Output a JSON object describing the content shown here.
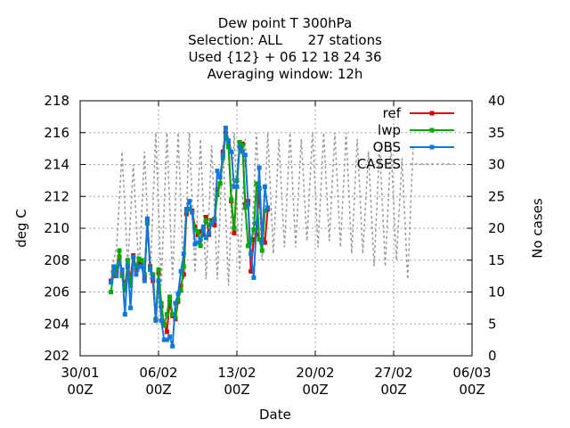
{
  "chart_data": {
    "type": "line",
    "title": "Dew point T 300hPa",
    "subtitle_lines": [
      "Selection: ALL      27 stations",
      "Used {12} + 06 12 18 24 36",
      "Averaging window: 12h"
    ],
    "xlabel": "Date",
    "ylabel": "deg C",
    "y2label": "No cases",
    "ylim": [
      202,
      218
    ],
    "y2lim": [
      0,
      40
    ],
    "x_range_days": [
      0,
      35
    ],
    "x_ticks": [
      {
        "day": 0,
        "label": [
          "30/01",
          "00Z"
        ]
      },
      {
        "day": 7,
        "label": [
          "06/02",
          "00Z"
        ]
      },
      {
        "day": 14,
        "label": [
          "13/02",
          "00Z"
        ]
      },
      {
        "day": 21,
        "label": [
          "20/02",
          "00Z"
        ]
      },
      {
        "day": 28,
        "label": [
          "27/02",
          "00Z"
        ]
      },
      {
        "day": 35,
        "label": [
          "06/03",
          "00Z"
        ]
      }
    ],
    "y_ticks": [
      202,
      204,
      206,
      208,
      210,
      212,
      214,
      216,
      218
    ],
    "y2_ticks": [
      0,
      5,
      10,
      15,
      20,
      25,
      30,
      35,
      40
    ],
    "grid": true,
    "legend_position": "top-right",
    "x_day_step": 0.25,
    "x_start_day": 2.75,
    "series": [
      {
        "name": "ref",
        "color": "#dd0000",
        "axis": "left",
        "values": [
          206.7,
          207.0,
          207.3,
          208.2,
          207.1,
          206.4,
          207.6,
          206.9,
          208.3,
          207.4,
          207.8,
          207.8,
          206.9,
          210.5,
          207.6,
          206.7,
          204.3,
          207.2,
          205.1,
          204.0,
          203.5,
          205.4,
          204.5,
          204.3,
          205.4,
          206.4,
          207.1,
          210.9,
          211.2,
          211.1,
          210.1,
          209.6,
          209.8,
          209.6,
          210.7,
          209.6,
          210.5,
          210.2,
          212.4,
          212.8,
          214.8,
          216.0,
          215.2,
          211.7,
          209.7,
          213.0,
          215.1,
          215.3,
          211.5,
          211.7,
          207.3,
          209.3,
          209.6,
          212.5,
          209.3,
          209.1,
          211.2
        ]
      },
      {
        "name": "lwp",
        "color": "#00aa00",
        "axis": "left",
        "values": [
          206.0,
          207.3,
          207.5,
          208.6,
          207.0,
          206.1,
          208.0,
          206.4,
          208.2,
          207.6,
          208.1,
          208.0,
          207.1,
          210.3,
          207.5,
          207.1,
          204.3,
          207.4,
          205.3,
          203.9,
          204.6,
          205.7,
          204.6,
          204.4,
          205.5,
          206.1,
          207.6,
          211.1,
          211.2,
          211.0,
          209.9,
          209.8,
          208.9,
          209.9,
          210.5,
          210.2,
          210.4,
          210.6,
          212.1,
          212.8,
          214.4,
          215.8,
          215.1,
          211.8,
          210.0,
          213.0,
          215.4,
          215.2,
          211.3,
          208.9,
          209.2,
          209.9,
          212.8,
          209.3,
          208.6,
          211.1
        ]
      },
      {
        "name": "OBS",
        "color": "#1177dd",
        "axis": "left",
        "values": [
          206.6,
          207.6,
          207.0,
          207.8,
          207.4,
          204.6,
          207.7,
          205.0,
          208.2,
          207.1,
          207.6,
          207.6,
          206.7,
          210.6,
          207.4,
          206.9,
          204.2,
          206.7,
          204.2,
          203.0,
          203.0,
          203.2,
          202.6,
          205.3,
          205.9,
          207.3,
          208.4,
          211.2,
          211.7,
          211.0,
          209.0,
          209.1,
          209.3,
          210.1,
          209.4,
          209.7,
          210.3,
          210.5,
          213.6,
          213.2,
          214.6,
          216.3,
          215.5,
          214.8,
          212.6,
          212.6,
          215.1,
          214.8,
          214.6,
          211.5,
          208.4,
          206.9,
          210.3,
          213.8,
          209.1,
          212.6,
          211.3
        ]
      }
    ],
    "cases": {
      "name": "CASES",
      "color": "#999999",
      "axis": "right",
      "day_step": 0.5,
      "start_day": 2.75,
      "values": [
        13,
        17,
        32,
        14,
        30,
        13,
        32,
        12,
        35,
        11,
        35,
        12,
        35,
        12,
        35,
        13,
        34,
        12,
        33,
        12,
        33,
        11,
        35,
        13,
        34,
        14,
        35,
        15,
        35,
        16,
        34,
        17,
        35,
        17,
        34,
        18,
        35,
        17,
        35,
        18,
        35,
        17,
        35,
        16,
        34,
        16,
        32,
        14,
        33,
        14,
        33,
        15,
        31,
        12,
        33
      ]
    }
  }
}
